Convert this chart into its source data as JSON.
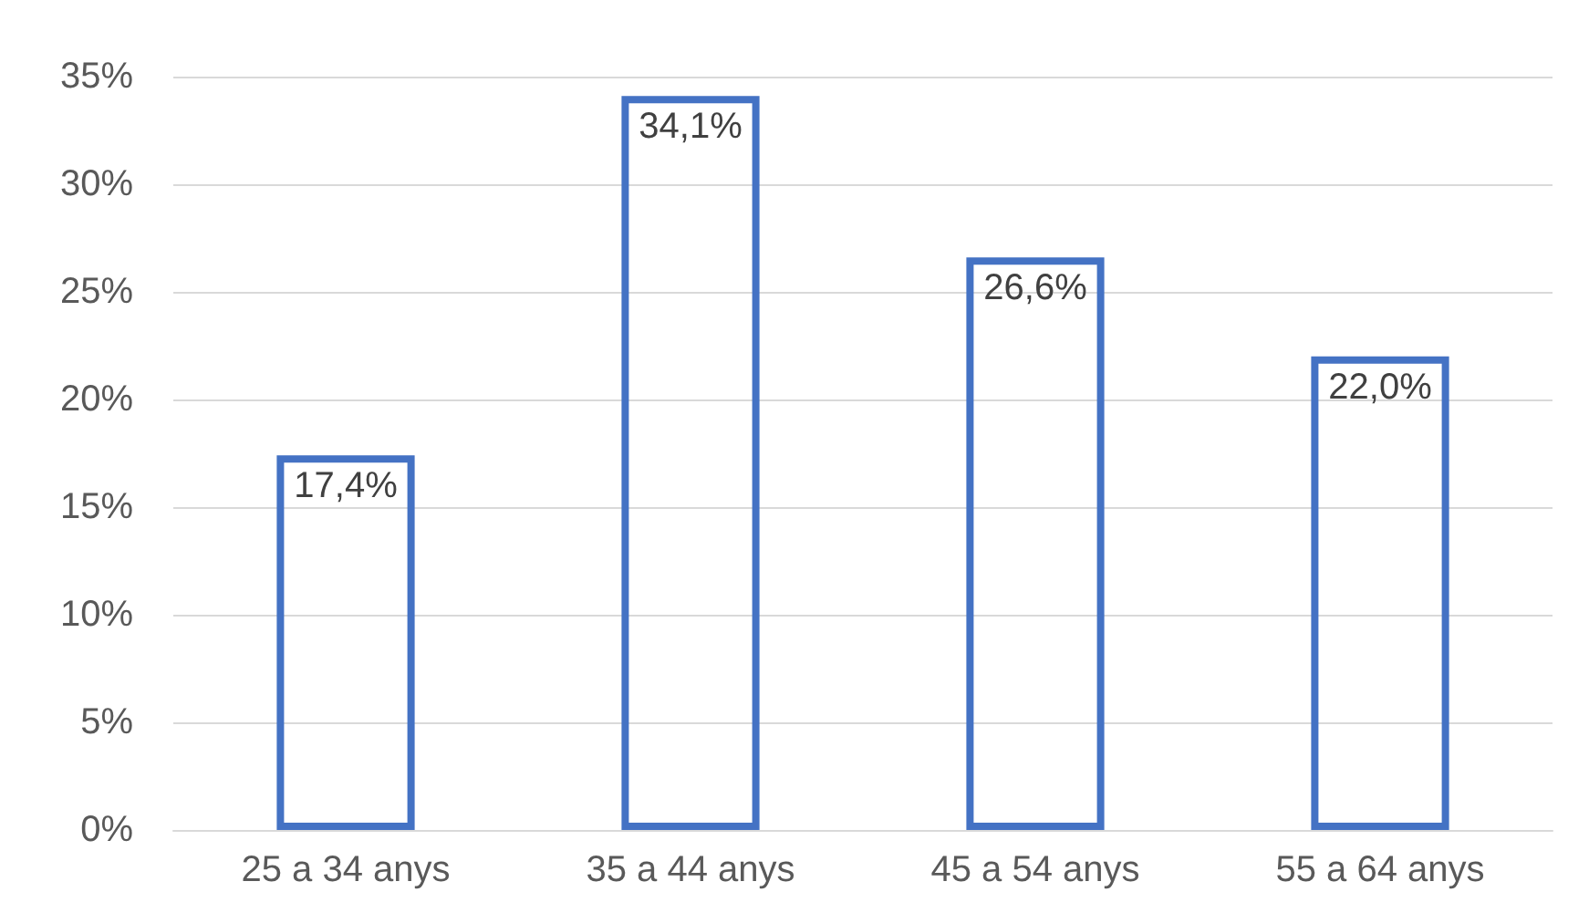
{
  "chart_data": {
    "type": "bar",
    "categories": [
      "25 a 34 anys",
      "35 a 44 anys",
      "45 a 54 anys",
      "55 a 64 anys"
    ],
    "values": [
      17.4,
      34.1,
      26.6,
      22.0
    ],
    "value_labels": [
      "17,4%",
      "34,1%",
      "26,6%",
      "22,0%"
    ],
    "color": "#4472c4",
    "ylim": [
      0,
      35
    ],
    "yticks": [
      {
        "value": 0,
        "label": "0%"
      },
      {
        "value": 5,
        "label": "5%"
      },
      {
        "value": 10,
        "label": "10%"
      },
      {
        "value": 15,
        "label": "15%"
      },
      {
        "value": 20,
        "label": "20%"
      },
      {
        "value": 25,
        "label": "25%"
      },
      {
        "value": 30,
        "label": "30%"
      },
      {
        "value": 35,
        "label": "35%"
      }
    ],
    "grid": "y"
  }
}
